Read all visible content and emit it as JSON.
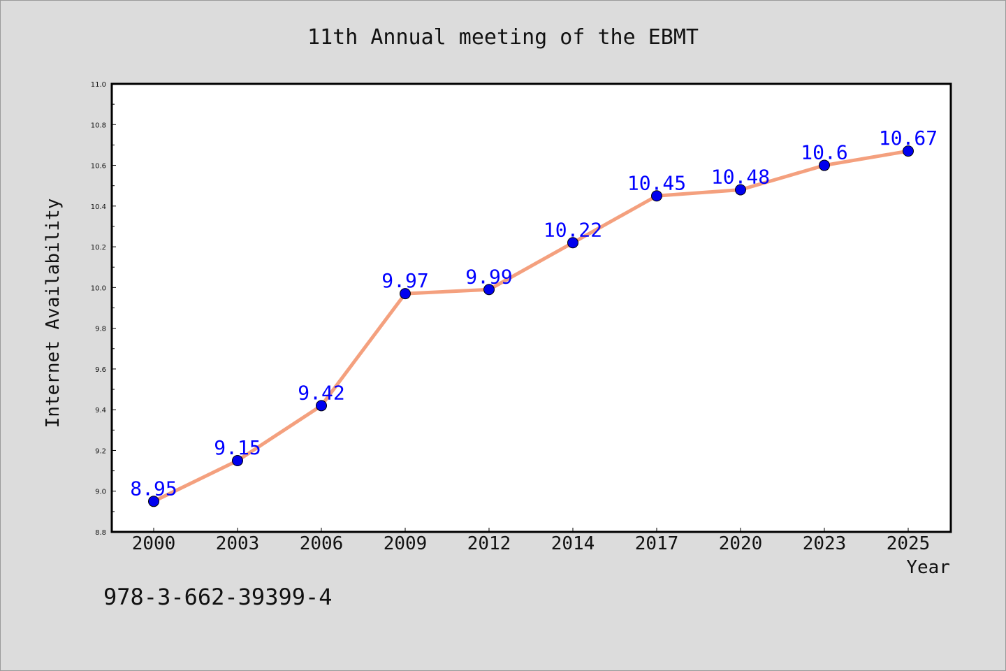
{
  "chart_data": {
    "type": "line",
    "title": "11th Annual meeting of the EBMT",
    "xlabel": "Year",
    "ylabel": "Internet Availability",
    "categories": [
      "2000",
      "2003",
      "2006",
      "2009",
      "2012",
      "2014",
      "2017",
      "2020",
      "2023",
      "2025"
    ],
    "series": [
      {
        "values": [
          8.95,
          9.15,
          9.42,
          9.97,
          9.99,
          10.22,
          10.45,
          10.48,
          10.6,
          10.67
        ],
        "data_labels": [
          "8.95",
          "9.15",
          "9.42",
          "9.97",
          "9.99",
          "10.22",
          "10.45",
          "10.48",
          "10.6",
          "10.67"
        ],
        "line_color": "#f4a07e",
        "marker_color": "#0000ee",
        "label_color": "#0000ff"
      }
    ],
    "ylim": [
      8.8,
      11.0
    ],
    "yticks": [
      "8.8",
      "9.0",
      "9.2",
      "9.4",
      "9.6",
      "9.8",
      "10.0",
      "10.2",
      "10.4",
      "10.6",
      "10.8",
      "11.0"
    ],
    "grid": false,
    "legend": "none"
  },
  "footnote": "978-3-662-39399-4",
  "colors": {
    "background": "#dcdcdc",
    "plot_background": "#ffffff"
  }
}
